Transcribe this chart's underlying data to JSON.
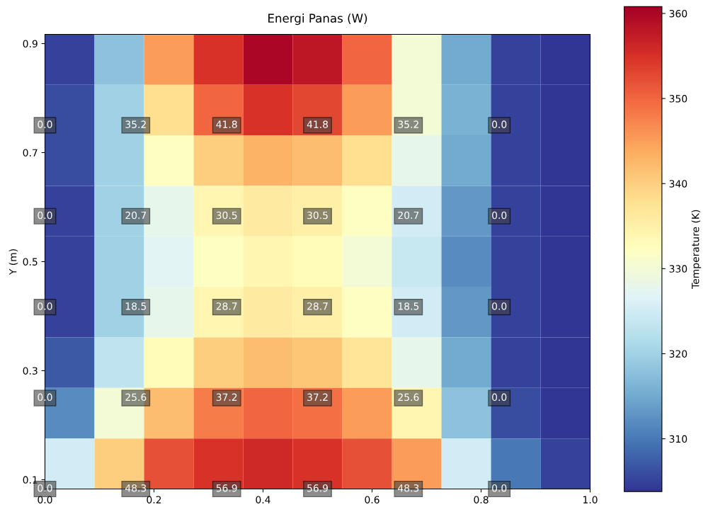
{
  "chart_data": {
    "type": "heatmap",
    "title": "Energi Panas (W)",
    "ylabel": "Y (m)",
    "clabel": "Temperature (K)",
    "xlim": [
      0,
      1
    ],
    "ylim": [
      0.083,
      0.917
    ],
    "xticks": [
      {
        "value": 0,
        "label": "0.0"
      },
      0.2,
      0.4,
      0.6,
      0.8,
      {
        "value": 1,
        "label": "1.0"
      }
    ],
    "yticks": [
      0.1,
      0.3,
      0.5,
      0.7,
      0.9
    ],
    "clim": [
      303.8,
      360.8
    ],
    "cticks": [
      310,
      320,
      330,
      340,
      350,
      360
    ],
    "cells": [
      [
        305,
        318,
        345,
        355,
        360,
        358,
        350,
        330,
        315,
        305,
        304
      ],
      [
        306,
        320,
        338,
        350,
        355,
        353,
        345,
        330,
        316,
        305,
        304
      ],
      [
        306,
        320,
        332,
        340,
        343,
        342,
        338,
        328,
        315,
        305,
        304
      ],
      [
        305,
        320,
        328,
        334,
        336,
        335,
        332,
        325,
        313,
        305,
        304
      ],
      [
        305,
        320,
        327,
        332,
        334,
        333,
        330,
        324,
        312,
        305,
        304
      ],
      [
        305,
        320,
        328,
        334,
        336,
        335,
        332,
        325,
        313,
        305,
        304
      ],
      [
        307,
        323,
        333,
        340,
        342,
        341,
        337,
        328,
        315,
        305,
        304
      ],
      [
        312,
        330,
        342,
        348,
        350,
        349,
        345,
        334,
        318,
        306,
        304
      ],
      [
        325,
        340,
        352,
        355,
        356,
        355,
        352,
        345,
        325,
        310,
        305
      ]
    ],
    "annotations": [
      "0.0",
      "35.2",
      "41.8",
      "41.8",
      "35.2",
      "0.0",
      "0.0",
      "20.7",
      "30.5",
      "30.5",
      "20.7",
      "0.0",
      "0.0",
      "18.5",
      "28.7",
      "28.7",
      "18.5",
      "0.0",
      "0.0",
      "25.6",
      "37.2",
      "37.2",
      "25.6",
      "0.0",
      "0.0",
      "48.3",
      "56.9",
      "56.9",
      "48.3",
      "0.0"
    ]
  }
}
